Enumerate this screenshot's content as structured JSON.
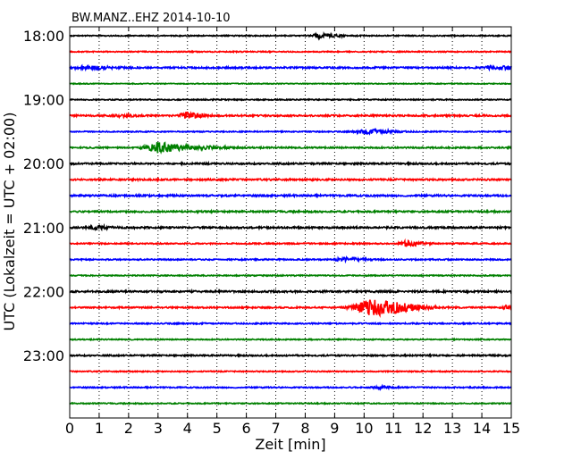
{
  "chart_data": {
    "type": "line",
    "title": "BW.MANZ..EHZ 2014-10-10",
    "xlabel": "Zeit  [min]",
    "ylabel": "UTC (Lokalzeit = UTC + 02:00)",
    "xlim": [
      0,
      15
    ],
    "x_ticks": [
      "0",
      "1",
      "2",
      "3",
      "4",
      "5",
      "6",
      "7",
      "8",
      "9",
      "10",
      "11",
      "12",
      "13",
      "14",
      "15"
    ],
    "y_ticks": [
      "18:00",
      "19:00",
      "20:00",
      "21:00",
      "22:00",
      "23:00"
    ],
    "grid": "vertical dotted",
    "trace_colors": [
      "#000000",
      "#ff0000",
      "#0000ff",
      "#008000"
    ],
    "traces": [
      {
        "start": "18:00",
        "noise": 0.6,
        "events": [
          {
            "x": 8.5,
            "amp": 2.2,
            "width": 0.25
          }
        ]
      },
      {
        "start": "18:15",
        "noise": 0.6,
        "events": []
      },
      {
        "start": "18:30",
        "noise": 0.9,
        "events": [
          {
            "x": 0.5,
            "amp": 1.8,
            "width": 0.35
          },
          {
            "x": 14.4,
            "amp": 1.5,
            "width": 0.35
          }
        ]
      },
      {
        "start": "18:45",
        "noise": 0.5,
        "events": []
      },
      {
        "start": "19:00",
        "noise": 0.6,
        "events": []
      },
      {
        "start": "19:15",
        "noise": 0.9,
        "events": [
          {
            "x": 3.95,
            "amp": 3.5,
            "width": 0.2
          },
          {
            "x": 1.7,
            "amp": 1.2,
            "width": 0.2
          }
        ]
      },
      {
        "start": "19:30",
        "noise": 0.6,
        "events": [
          {
            "x": 10.1,
            "amp": 2.0,
            "width": 0.4
          }
        ]
      },
      {
        "start": "19:45",
        "noise": 0.8,
        "events": [
          {
            "x": 2.95,
            "amp": 5.5,
            "width": 0.4
          },
          {
            "x": 4.6,
            "amp": 1.2,
            "width": 0.3
          }
        ]
      },
      {
        "start": "20:00",
        "noise": 0.9,
        "events": []
      },
      {
        "start": "20:15",
        "noise": 0.9,
        "events": []
      },
      {
        "start": "20:30",
        "noise": 1.0,
        "events": []
      },
      {
        "start": "20:45",
        "noise": 0.9,
        "events": []
      },
      {
        "start": "21:00",
        "noise": 1.0,
        "events": [
          {
            "x": 0.9,
            "amp": 1.4,
            "width": 0.2
          }
        ]
      },
      {
        "start": "21:15",
        "noise": 0.7,
        "events": [
          {
            "x": 11.4,
            "amp": 2.6,
            "width": 0.25
          }
        ]
      },
      {
        "start": "21:30",
        "noise": 0.7,
        "events": [
          {
            "x": 9.3,
            "amp": 1.6,
            "width": 0.3
          }
        ]
      },
      {
        "start": "21:45",
        "noise": 0.6,
        "events": []
      },
      {
        "start": "22:00",
        "noise": 1.0,
        "events": []
      },
      {
        "start": "22:15",
        "noise": 0.8,
        "events": [
          {
            "x": 10.2,
            "amp": 8.5,
            "width": 0.55
          },
          {
            "x": 14.9,
            "amp": 2.5,
            "width": 0.2
          }
        ]
      },
      {
        "start": "22:30",
        "noise": 0.7,
        "events": []
      },
      {
        "start": "22:45",
        "noise": 0.6,
        "events": []
      },
      {
        "start": "23:00",
        "noise": 0.8,
        "events": []
      },
      {
        "start": "23:15",
        "noise": 0.6,
        "events": []
      },
      {
        "start": "23:30",
        "noise": 0.7,
        "events": [
          {
            "x": 10.5,
            "amp": 1.2,
            "width": 0.2
          }
        ]
      },
      {
        "start": "23:45",
        "noise": 0.6,
        "events": []
      }
    ]
  }
}
